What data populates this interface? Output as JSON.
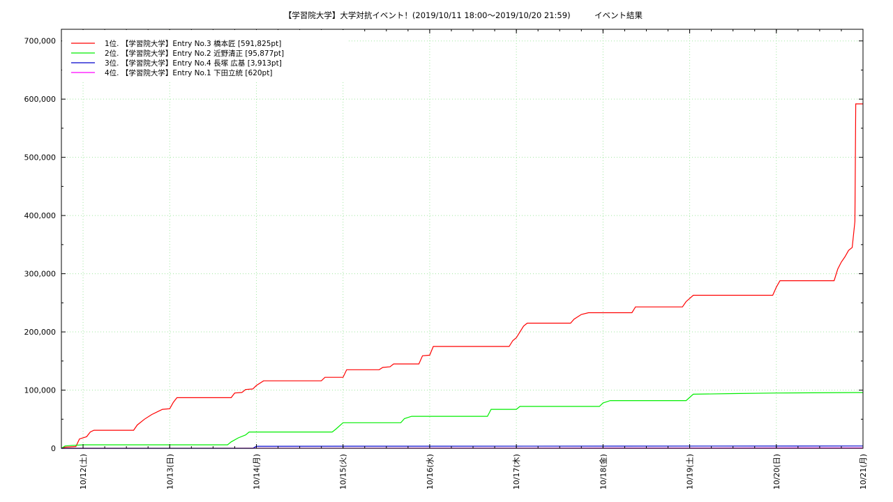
{
  "chart_data": {
    "type": "line",
    "title": "【学習院大学】大学対抗イベント！(2019/10/11 18:00〜2019/10/20 21:59)　　　イベント結果",
    "ylim": [
      0,
      720000
    ],
    "yticks": [
      0,
      100000,
      200000,
      300000,
      400000,
      500000,
      600000,
      700000
    ],
    "ytick_labels": [
      "0",
      "100,000",
      "200,000",
      "300,000",
      "400,000",
      "500,000",
      "600,000",
      "700,000"
    ],
    "xlim": [
      "2019-10-11 18:00",
      "2019-10-21 00:00"
    ],
    "xtick_labels": [
      "10/12(土)",
      "10/13(日)",
      "10/14(月)",
      "10/15(火)",
      "10/16(水)",
      "10/17(木)",
      "10/18(金)",
      "10/19(土)",
      "10/20(日)",
      "10/21(月)"
    ],
    "xtick_dates": [
      "2019-10-12 00:00",
      "2019-10-13 00:00",
      "2019-10-14 00:00",
      "2019-10-15 00:00",
      "2019-10-16 00:00",
      "2019-10-17 00:00",
      "2019-10-18 00:00",
      "2019-10-19 00:00",
      "2019-10-20 00:00",
      "2019-10-21 00:00"
    ],
    "grid": true,
    "legend_position": "top-left",
    "series": [
      {
        "name": "1位. 【学習院大学】Entry No.3 橋本匠 [591,825pt]",
        "color": "#ff0000",
        "points": [
          [
            "2019-10-11 18:00",
            0
          ],
          [
            "2019-10-11 19:00",
            2000
          ],
          [
            "2019-10-11 22:00",
            3000
          ],
          [
            "2019-10-11 23:00",
            16000
          ],
          [
            "2019-10-12 01:00",
            20000
          ],
          [
            "2019-10-12 02:00",
            28000
          ],
          [
            "2019-10-12 03:00",
            31000
          ],
          [
            "2019-10-12 14:00",
            31000
          ],
          [
            "2019-10-12 15:00",
            40000
          ],
          [
            "2019-10-12 17:00",
            50000
          ],
          [
            "2019-10-12 19:00",
            58000
          ],
          [
            "2019-10-12 21:00",
            64000
          ],
          [
            "2019-10-12 22:00",
            67000
          ],
          [
            "2019-10-13 00:00",
            68000
          ],
          [
            "2019-10-13 01:00",
            79000
          ],
          [
            "2019-10-13 02:00",
            87000
          ],
          [
            "2019-10-13 17:00",
            87000
          ],
          [
            "2019-10-13 18:00",
            95000
          ],
          [
            "2019-10-13 20:00",
            96000
          ],
          [
            "2019-10-13 21:00",
            101000
          ],
          [
            "2019-10-13 23:00",
            102000
          ],
          [
            "2019-10-14 00:00",
            108000
          ],
          [
            "2019-10-14 02:00",
            116000
          ],
          [
            "2019-10-14 18:00",
            116000
          ],
          [
            "2019-10-14 19:00",
            122000
          ],
          [
            "2019-10-15 00:00",
            122000
          ],
          [
            "2019-10-15 01:00",
            135000
          ],
          [
            "2019-10-15 10:00",
            135000
          ],
          [
            "2019-10-15 11:00",
            139000
          ],
          [
            "2019-10-15 13:00",
            140000
          ],
          [
            "2019-10-15 14:00",
            145000
          ],
          [
            "2019-10-15 21:00",
            145000
          ],
          [
            "2019-10-15 22:00",
            159000
          ],
          [
            "2019-10-16 00:00",
            160000
          ],
          [
            "2019-10-16 01:00",
            175000
          ],
          [
            "2019-10-16 22:00",
            175000
          ],
          [
            "2019-10-16 23:00",
            185000
          ],
          [
            "2019-10-17 00:00",
            190000
          ],
          [
            "2019-10-17 01:00",
            200000
          ],
          [
            "2019-10-17 02:00",
            210000
          ],
          [
            "2019-10-17 03:00",
            215000
          ],
          [
            "2019-10-17 15:00",
            215000
          ],
          [
            "2019-10-17 16:00",
            222000
          ],
          [
            "2019-10-17 18:00",
            230000
          ],
          [
            "2019-10-17 20:00",
            233000
          ],
          [
            "2019-10-18 08:00",
            233000
          ],
          [
            "2019-10-18 09:00",
            243000
          ],
          [
            "2019-10-18 22:00",
            243000
          ],
          [
            "2019-10-18 23:00",
            252000
          ],
          [
            "2019-10-19 01:00",
            263000
          ],
          [
            "2019-10-19 23:00",
            263000
          ],
          [
            "2019-10-20 00:00",
            277000
          ],
          [
            "2019-10-20 01:00",
            288000
          ],
          [
            "2019-10-20 16:00",
            288000
          ],
          [
            "2019-10-20 17:00",
            308000
          ],
          [
            "2019-10-20 18:00",
            320000
          ],
          [
            "2019-10-20 19:00",
            329000
          ],
          [
            "2019-10-20 20:00",
            340000
          ],
          [
            "2019-10-20 21:00",
            345000
          ],
          [
            "2019-10-20 21:45",
            390000
          ],
          [
            "2019-10-20 21:59",
            591825
          ],
          [
            "2019-10-21 00:00",
            591825
          ]
        ]
      },
      {
        "name": "2位. 【学習院大学】Entry No.2 近野清正 [95,877pt]",
        "color": "#00ee00",
        "points": [
          [
            "2019-10-11 18:00",
            0
          ],
          [
            "2019-10-11 19:00",
            4000
          ],
          [
            "2019-10-11 21:00",
            5000
          ],
          [
            "2019-10-12 00:00",
            6000
          ],
          [
            "2019-10-13 16:00",
            6000
          ],
          [
            "2019-10-13 17:00",
            11000
          ],
          [
            "2019-10-13 19:00",
            18000
          ],
          [
            "2019-10-13 21:00",
            23000
          ],
          [
            "2019-10-13 22:00",
            28000
          ],
          [
            "2019-10-14 21:00",
            28000
          ],
          [
            "2019-10-14 22:00",
            33000
          ],
          [
            "2019-10-15 00:00",
            44000
          ],
          [
            "2019-10-15 16:00",
            44000
          ],
          [
            "2019-10-15 17:00",
            51000
          ],
          [
            "2019-10-15 19:00",
            55000
          ],
          [
            "2019-10-16 16:00",
            55000
          ],
          [
            "2019-10-16 17:00",
            67000
          ],
          [
            "2019-10-17 00:00",
            67000
          ],
          [
            "2019-10-17 01:00",
            72000
          ],
          [
            "2019-10-17 23:00",
            72000
          ],
          [
            "2019-10-18 00:00",
            78000
          ],
          [
            "2019-10-18 02:00",
            82000
          ],
          [
            "2019-10-18 23:00",
            82000
          ],
          [
            "2019-10-19 01:00",
            93000
          ],
          [
            "2019-10-19 12:00",
            94000
          ],
          [
            "2019-10-20 00:00",
            95000
          ],
          [
            "2019-10-20 21:59",
            95877
          ],
          [
            "2019-10-21 00:00",
            95877
          ]
        ]
      },
      {
        "name": "3位. 【学習院大学】Entry No.4 長塚 広基 [3,913pt]",
        "color": "#0000cc",
        "points": [
          [
            "2019-10-11 18:00",
            0
          ],
          [
            "2019-10-13 23:00",
            0
          ],
          [
            "2019-10-14 00:00",
            3500
          ],
          [
            "2019-10-20 21:59",
            3913
          ],
          [
            "2019-10-21 00:00",
            3913
          ]
        ]
      },
      {
        "name": "4位. 【学習院大学】Entry No.1 下田立統 [620pt]",
        "color": "#ff00ff",
        "points": [
          [
            "2019-10-11 18:00",
            0
          ],
          [
            "2019-10-20 21:59",
            620
          ],
          [
            "2019-10-21 00:00",
            620
          ]
        ]
      }
    ]
  }
}
